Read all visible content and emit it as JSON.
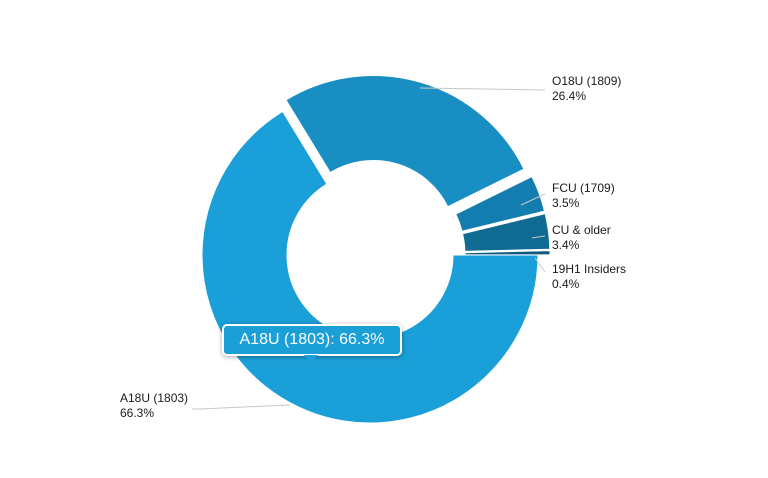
{
  "chart_data": {
    "type": "pie",
    "variant": "donut",
    "series": [
      {
        "name": "A18U (1803)",
        "value": 66.3,
        "label_line1": "A18U (1803)",
        "label_line2": "66.3%",
        "color": "#1b9fd8",
        "exploded": false
      },
      {
        "name": "O18U (1809)",
        "value": 26.4,
        "label_line1": "O18U (1809)",
        "label_line2": "26.4%",
        "color": "#188ec2",
        "exploded": true
      },
      {
        "name": "FCU (1709)",
        "value": 3.5,
        "label_line1": "FCU (1709)",
        "label_line2": "3.5%",
        "color": "#147db0",
        "exploded": true
      },
      {
        "name": "CU & older",
        "value": 3.4,
        "label_line1": "CU & older",
        "label_line2": "3.4%",
        "color": "#106b92",
        "exploded": true
      },
      {
        "name": "19H1 Insiders",
        "value": 0.4,
        "label_line1": "19H1 Insiders",
        "label_line2": "0.4%",
        "color": "#0e5a7c",
        "exploded": true
      }
    ],
    "tooltip": "A18U (1803): 66.3%"
  }
}
